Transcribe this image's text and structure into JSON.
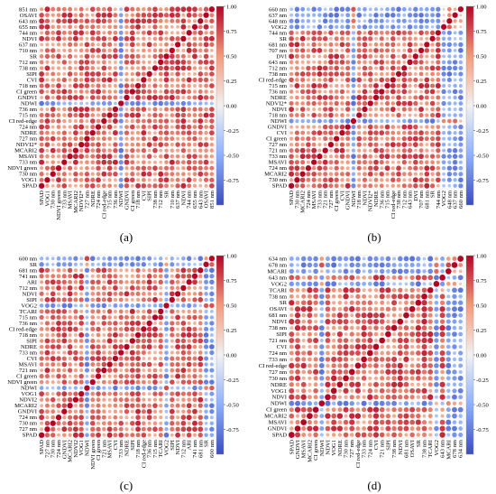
{
  "figure": {
    "color_low": "#3b4cc0",
    "color_mid": "#f2f2f2",
    "color_high": "#b40426",
    "colorbar_ticks": [
      "1.00",
      "0.75",
      "0.50",
      "0.25",
      "0.00",
      "-0.25",
      "-0.50",
      "-0.75"
    ]
  },
  "chart_data": [
    {
      "panel": "(a)",
      "type": "heatmap",
      "ylabels": [
        "851 nm",
        "OSAVI",
        "643 nm",
        "655 nm",
        "744 nm",
        "NDVI",
        "637 nm",
        "710 nm",
        "SR",
        "712 nm",
        "738 nm",
        "SIPI",
        "CVI",
        "718 nm",
        "CI_green",
        "GNDVI",
        "NDWI",
        "736 nm",
        "715 nm",
        "CI_red-edge",
        "724 nm",
        "NDRE",
        "727 nm",
        "NDVI2*",
        "MCARI2",
        "MSAVI",
        "733 nm",
        "NDVI_green",
        "730 nm",
        "VOG1",
        "SPAD"
      ],
      "xlabels": [
        "SPAD",
        "VOG1",
        "730 nm",
        "NDVI_green",
        "733 nm",
        "MSAVI",
        "MCARI2",
        "NDVI2*",
        "727 nm",
        "NDRE",
        "724 nm",
        "CI_red-edge",
        "715 nm",
        "736 nm",
        "NDWI",
        "GNDVI",
        "CI_green",
        "718 nm",
        "CVI",
        "SIPI",
        "738 nm",
        "712 nm",
        "SR",
        "710 nm",
        "637 nm",
        "NDVI",
        "744 nm",
        "655 nm",
        "643 nm",
        "OSAVI",
        "851 nm"
      ],
      "neg_labels": [
        "NDWI"
      ]
    },
    {
      "panel": "(b)",
      "type": "heatmap",
      "ylabels": [
        "660 nm",
        "637 nm",
        "648 nm",
        "VOG2",
        "744 nm",
        "SR",
        "681 nm",
        "707 nm",
        "DVI",
        "643 nm",
        "712 nm",
        "738 nm",
        "CI_red-edge",
        "715 nm",
        "736 nm",
        "NDRE",
        "NDVI2*",
        "NDVI",
        "718 nm",
        "NDWI",
        "GNDVI",
        "CVI",
        "CI_green",
        "727 nm",
        "721 nm",
        "733 nm",
        "MSAVI",
        "724 nm",
        "MCARI2",
        "730 nm",
        "SPAD"
      ],
      "xlabels": [
        "SPAD",
        "730 nm",
        "MCARI2",
        "724 nm",
        "MSAVI",
        "733 nm",
        "721 nm",
        "727 nm",
        "CI_green",
        "CVI",
        "GNDVI",
        "NDWI",
        "718 nm",
        "NDVI",
        "NDVI2*",
        "NDRE",
        "736 nm",
        "715 nm",
        "CI_red-edge",
        "738 nm",
        "712 nm",
        "643 nm",
        "DVI",
        "707 nm",
        "681 nm",
        "SR",
        "744 nm",
        "VOG2",
        "648 nm",
        "637 nm",
        "660 nm"
      ],
      "neg_labels": [
        "NDWI",
        "VOG2",
        "660 nm",
        "637 nm",
        "648 nm"
      ]
    },
    {
      "panel": "(c)",
      "type": "heatmap",
      "ylabels": [
        "600 nm",
        "SR",
        "681 nm",
        "741 nm",
        "ARI",
        "712 nm",
        "NDVI",
        "SIPI",
        "VOG2",
        "TCARI",
        "715 nm",
        "736 nm",
        "CI_red-edge",
        "718 nm",
        "SIPI",
        "NDRE",
        "733 nm",
        "CVI",
        "MSAVI",
        "721 nm",
        "CI_green",
        "NDVI_green",
        "NDWI",
        "VOG1",
        "NDVI2",
        "MCARI2",
        "GNDVI",
        "724 nm",
        "730 nm",
        "727 nm",
        "SPAD"
      ],
      "xlabels": [
        "SPAD",
        "727 nm",
        "730 nm",
        "724 nm",
        "GNDVI",
        "MCARI2",
        "NDVI2",
        "VOG1",
        "NDWI",
        "NDVI_green",
        "CI_green",
        "721 nm",
        "MSAVI",
        "CVI",
        "733 nm",
        "NDRE",
        "SIPI",
        "718 nm",
        "CI_red-edge",
        "736 nm",
        "715 nm",
        "TCARI",
        "VOG2",
        "SIPI",
        "NDVI",
        "712 nm",
        "ARI",
        "741 nm",
        "681 nm",
        "SR",
        "600 nm"
      ],
      "neg_labels": [
        "NDWI",
        "VOG2",
        "SR",
        "600 nm"
      ]
    },
    {
      "panel": "(d)",
      "type": "heatmap",
      "ylabels": [
        "634 nm",
        "678 nm",
        "MCARI",
        "643 nm",
        "VOG2",
        "TCARI",
        "738 nm",
        "SR",
        "OSAVI",
        "681 nm",
        "NDVI",
        "738 nm",
        "SIPI",
        "721 nm",
        "CVI",
        "724 nm",
        "733 nm",
        "CI_red-edge",
        "727 nm",
        "730 nm",
        "NDRE",
        "VOG1",
        "NDVI",
        "NDWI",
        "CI_green",
        "MCARI2",
        "MSAVI",
        "GNDVI",
        "SPAD"
      ],
      "xlabels": [
        "SPAD",
        "GNDVI",
        "MSAVI",
        "MCARI2",
        "CI_green",
        "NDWI",
        "NDVI",
        "VOG1",
        "NDRE",
        "730 nm",
        "727 nm",
        "CI_red-edge",
        "733 nm",
        "724 nm",
        "CVI",
        "721 nm",
        "SIPI",
        "738 nm",
        "NDVI",
        "681 nm",
        "OSAVI",
        "SR",
        "738 nm",
        "TCARI",
        "VOG2",
        "643 nm",
        "MCARI",
        "678 nm",
        "634 nm"
      ],
      "neg_labels": [
        "NDWI",
        "VOG2",
        "MCARI",
        "678 nm",
        "634 nm"
      ]
    }
  ]
}
